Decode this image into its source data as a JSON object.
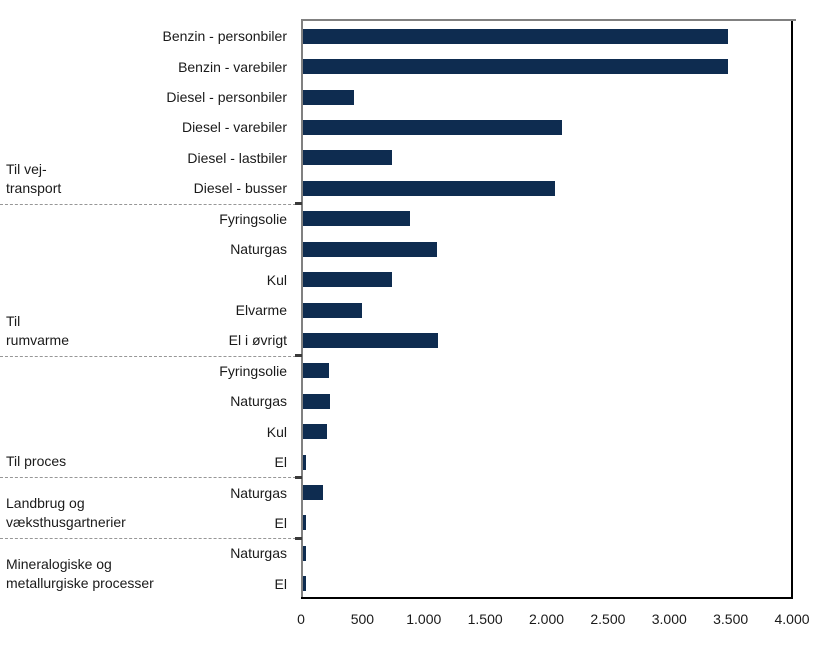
{
  "chart_data": {
    "type": "bar",
    "orientation": "horizontal",
    "title": "",
    "xlabel": "",
    "ylabel": "",
    "xlim": [
      0,
      4000
    ],
    "grid": false,
    "legend": false,
    "bar_color": "#0e2c50",
    "x_ticks": [
      0,
      500,
      1000,
      1500,
      2000,
      2500,
      3000,
      3500,
      4000
    ],
    "x_tick_labels": [
      "0",
      "500",
      "1.000",
      "1.500",
      "2.000",
      "2.500",
      "3.000",
      "3.500",
      "4.000"
    ],
    "groups": [
      {
        "label": "Til vej-transport",
        "label_lines": [
          "Til vej-",
          "transport"
        ],
        "items": [
          {
            "label": "Benzin - personbiler",
            "value": 3480
          },
          {
            "label": "Benzin - varebiler",
            "value": 3480
          },
          {
            "label": "Diesel - personbiler",
            "value": 430
          },
          {
            "label": "Diesel - varebiler",
            "value": 2130
          },
          {
            "label": "Diesel - lastbiler",
            "value": 740
          },
          {
            "label": "Diesel - busser",
            "value": 2070
          }
        ]
      },
      {
        "label": "Til rumvarme",
        "label_lines": [
          "Til",
          "rumvarme"
        ],
        "items": [
          {
            "label": "Fyringsolie",
            "value": 890
          },
          {
            "label": "Naturgas",
            "value": 1110
          },
          {
            "label": "Kul",
            "value": 740
          },
          {
            "label": "Elvarme",
            "value": 500
          },
          {
            "label": "El i øvrigt",
            "value": 1120
          }
        ]
      },
      {
        "label": "Til proces",
        "label_lines": [
          "Til proces"
        ],
        "items": [
          {
            "label": "Fyringsolie",
            "value": 230
          },
          {
            "label": "Naturgas",
            "value": 240
          },
          {
            "label": "Kul",
            "value": 210
          },
          {
            "label": "El",
            "value": 40
          }
        ]
      },
      {
        "label": "Landbrug og væksthusgartnerier",
        "label_lines": [
          "Landbrug og",
          "væksthusgartnerier"
        ],
        "items": [
          {
            "label": "Naturgas",
            "value": 180
          },
          {
            "label": "El",
            "value": 40
          }
        ]
      },
      {
        "label": "Mineralogiske og metallurgiske processer",
        "label_lines": [
          "Mineralogiske og",
          "metallurgiske processer"
        ],
        "items": [
          {
            "label": "Naturgas",
            "value": 40
          },
          {
            "label": "El",
            "value": 40
          }
        ]
      }
    ]
  }
}
